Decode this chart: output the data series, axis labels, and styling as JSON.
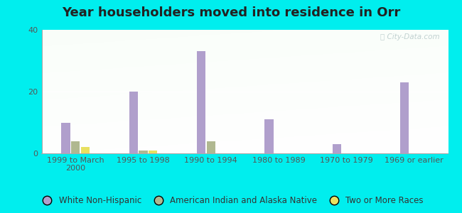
{
  "title": "Year householders moved into residence in Orr",
  "categories": [
    "1999 to March\n2000",
    "1995 to 1998",
    "1990 to 1994",
    "1980 to 1989",
    "1970 to 1979",
    "1969 or earlier"
  ],
  "series": [
    {
      "name": "White Non-Hispanic",
      "color": "#b09fcc",
      "values": [
        10,
        20,
        33,
        11,
        3,
        23
      ]
    },
    {
      "name": "American Indian and Alaska Native",
      "color": "#b0b890",
      "values": [
        4,
        1,
        4,
        0,
        0,
        0
      ]
    },
    {
      "name": "Two or More Races",
      "color": "#e8e060",
      "values": [
        2,
        1,
        0,
        0,
        0,
        0
      ]
    }
  ],
  "ylim": [
    0,
    40
  ],
  "yticks": [
    0,
    20,
    40
  ],
  "outer_bg": "#00eeee",
  "bar_width": 0.13,
  "title_fontsize": 13,
  "tick_fontsize": 8,
  "legend_fontsize": 8.5
}
